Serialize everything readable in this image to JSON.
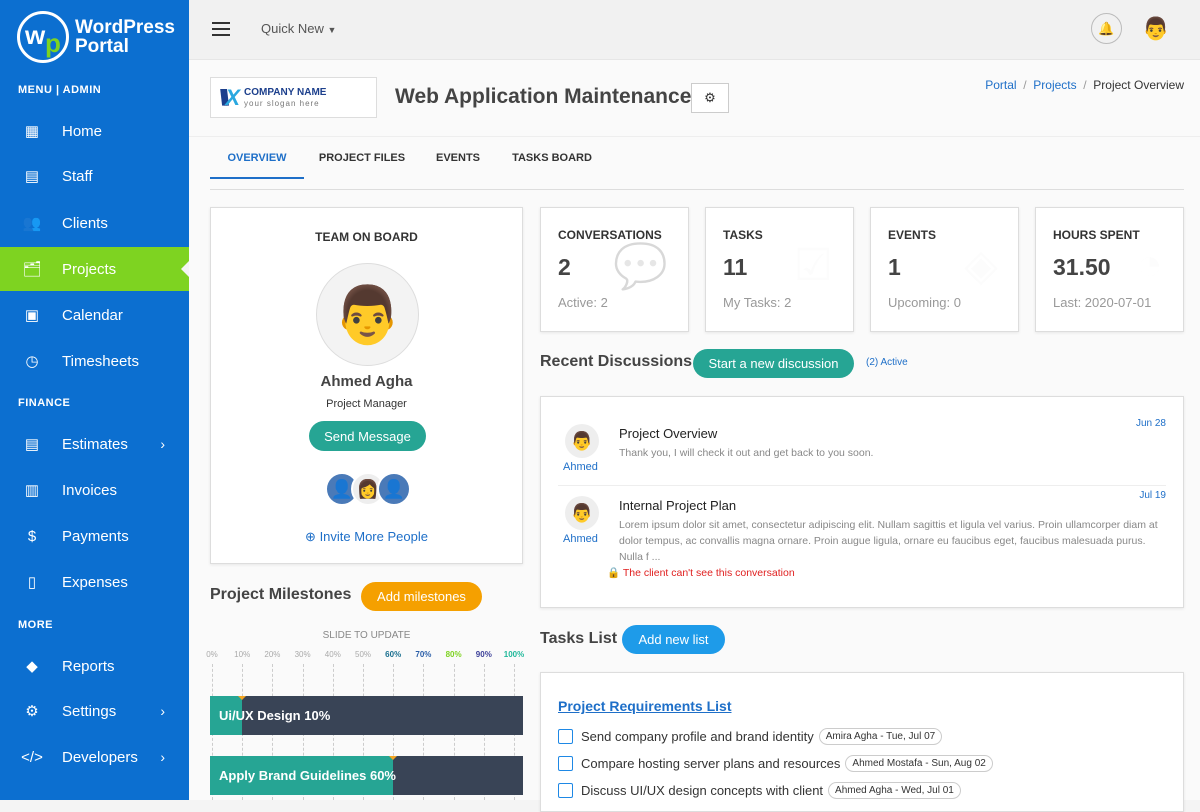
{
  "brand": {
    "line1": "WordPress",
    "line2": "Portal"
  },
  "sidebar": {
    "sections": [
      "MENU | ADMIN",
      "FINANCE",
      "MORE"
    ],
    "items": [
      {
        "label": "Home",
        "icon": "dashboard-icon"
      },
      {
        "label": "Staff",
        "icon": "id-card-icon"
      },
      {
        "label": "Clients",
        "icon": "users-icon"
      },
      {
        "label": "Projects",
        "icon": "folder-icon",
        "active": true
      },
      {
        "label": "Calendar",
        "icon": "calendar-icon"
      },
      {
        "label": "Timesheets",
        "icon": "timesheet-icon"
      },
      {
        "label": "Estimates",
        "icon": "document-icon",
        "chevron": true
      },
      {
        "label": "Invoices",
        "icon": "invoice-icon"
      },
      {
        "label": "Payments",
        "icon": "money-icon"
      },
      {
        "label": "Expenses",
        "icon": "receipt-icon"
      },
      {
        "label": "Reports",
        "icon": "chart-icon"
      },
      {
        "label": "Settings",
        "icon": "gear-icon",
        "chevron": true
      },
      {
        "label": "Developers",
        "icon": "code-icon",
        "chevron": true
      }
    ]
  },
  "topbar": {
    "quick_new": "Quick New"
  },
  "company": {
    "name": "COMPANY NAME",
    "slogan": "your slogan here"
  },
  "page_title": "Web Application Maintenance",
  "breadcrumb": [
    "Portal",
    "Projects",
    "Project Overview"
  ],
  "tabs": [
    "OVERVIEW",
    "PROJECT FILES",
    "EVENTS",
    "TASKS BOARD"
  ],
  "team": {
    "title": "TEAM ON BOARD",
    "name": "Ahmed Agha",
    "role": "Project Manager",
    "send": "Send Message",
    "invite": "Invite More People"
  },
  "stats": [
    {
      "title": "CONVERSATIONS",
      "value": "2",
      "sub": "Active: 2"
    },
    {
      "title": "TASKS",
      "value": "11",
      "sub": "My Tasks: 2"
    },
    {
      "title": "EVENTS",
      "value": "1",
      "sub": "Upcoming: 0"
    },
    {
      "title": "HOURS SPENT",
      "value": "31.50",
      "sub": "Last: 2020-07-01"
    }
  ],
  "discussions": {
    "title": "Recent Discussions",
    "button": "Start a new discussion",
    "active": "(2) Active",
    "items": [
      {
        "title": "Project Overview",
        "text": "Thank you, I will check it out and get back to you soon.",
        "author": "Ahmed",
        "date": "Jun 28"
      },
      {
        "title": "Internal Project Plan",
        "text": "Lorem ipsum dolor sit amet, consectetur adipiscing elit. Nullam sagittis et ligula vel varius. Proin ullamcorper diam at dolor tempus, ac convallis magna ornare. Proin augue ligula, ornare eu faucibus eget, faucibus malesuada purus. Nulla f ...",
        "author": "Ahmed",
        "date": "Jul 19",
        "warning": "The client can't see this conversation"
      }
    ]
  },
  "milestones": {
    "title": "Project Milestones",
    "button": "Add milestones",
    "slide": "SLIDE TO UPDATE",
    "ticks": [
      {
        "l": "0%",
        "c": "#aaaaaa"
      },
      {
        "l": "10%",
        "c": "#aaaaaa"
      },
      {
        "l": "20%",
        "c": "#aaaaaa"
      },
      {
        "l": "30%",
        "c": "#aaaaaa"
      },
      {
        "l": "40%",
        "c": "#aaaaaa"
      },
      {
        "l": "50%",
        "c": "#aaaaaa"
      },
      {
        "l": "60%",
        "c": "#1a6f8f"
      },
      {
        "l": "70%",
        "c": "#2a5ea8"
      },
      {
        "l": "80%",
        "c": "#7ed321"
      },
      {
        "l": "90%",
        "c": "#3b3f99"
      },
      {
        "l": "100%",
        "c": "#1fb89a"
      }
    ],
    "items": [
      {
        "label": "Ui/UX Design 10%",
        "progress": 10
      },
      {
        "label": "Apply Brand Guidelines 60%",
        "progress": 60
      }
    ]
  },
  "tasks": {
    "title": "Tasks List",
    "button": "Add new list",
    "list_title": "Project Requirements List",
    "items": [
      {
        "text": "Send company profile and brand identity",
        "chip": "Amira Agha - Tue, Jul 07"
      },
      {
        "text": "Compare hosting server plans and resources",
        "chip": "Ahmed Mostafa - Sun, Aug 02"
      },
      {
        "text": "Discuss UI/UX design concepts with client",
        "chip": "Ahmed Agha - Wed, Jul 01"
      }
    ]
  },
  "colors": {
    "sidebar": "#0c6fd0",
    "active": "#7ed321",
    "teal": "#26a594",
    "orange": "#f5a623",
    "blue": "#1e9be9"
  }
}
